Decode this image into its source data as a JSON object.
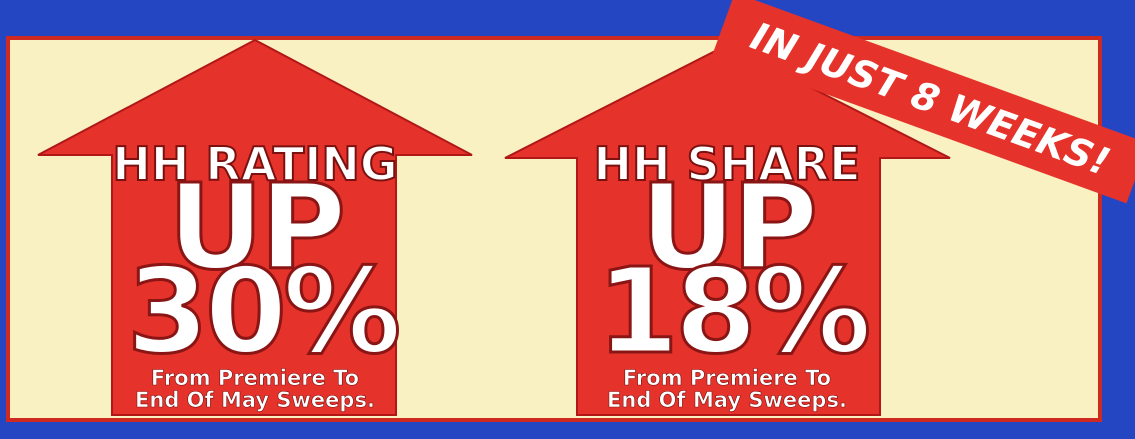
{
  "banner": "IN JUST 8 WEEKS!",
  "arrows": [
    {
      "label": "HH RATING",
      "headline": "UP",
      "figure": "30%",
      "note_lines": [
        "From Premiere To",
        "End Of May Sweeps."
      ]
    },
    {
      "label": "HH SHARE",
      "headline": "UP",
      "figure": "18%",
      "note_lines": [
        "From Premiere To",
        "End Of May Sweeps."
      ]
    }
  ]
}
